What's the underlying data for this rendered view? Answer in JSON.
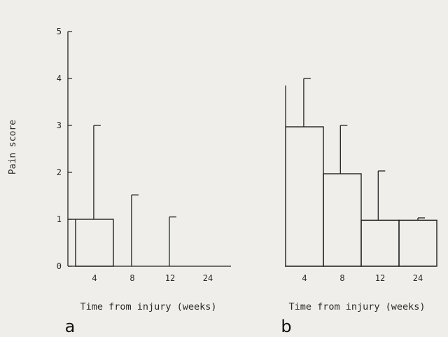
{
  "chart_data": [
    {
      "type": "bar",
      "panel": "a",
      "ylabel": "Pain score",
      "xlabel": "Time from injury (weeks)",
      "ylim": [
        0,
        5
      ],
      "yticks": [
        0,
        1,
        2,
        3,
        4,
        5
      ],
      "categories": [
        "4",
        "8",
        "12",
        "24"
      ],
      "values": [
        1.0,
        0,
        0,
        0
      ],
      "error_upper": [
        3.0,
        1.52,
        1.05,
        null
      ],
      "grid": false
    },
    {
      "type": "bar",
      "panel": "b",
      "xlabel": "Time from injury (weeks)",
      "ylim": [
        0,
        5
      ],
      "categories": [
        "4",
        "8",
        "12",
        "24"
      ],
      "values": [
        2.97,
        1.97,
        0.98,
        0.98
      ],
      "error_upper": [
        4.0,
        3.0,
        2.03,
        1.03
      ],
      "grid": false
    }
  ]
}
